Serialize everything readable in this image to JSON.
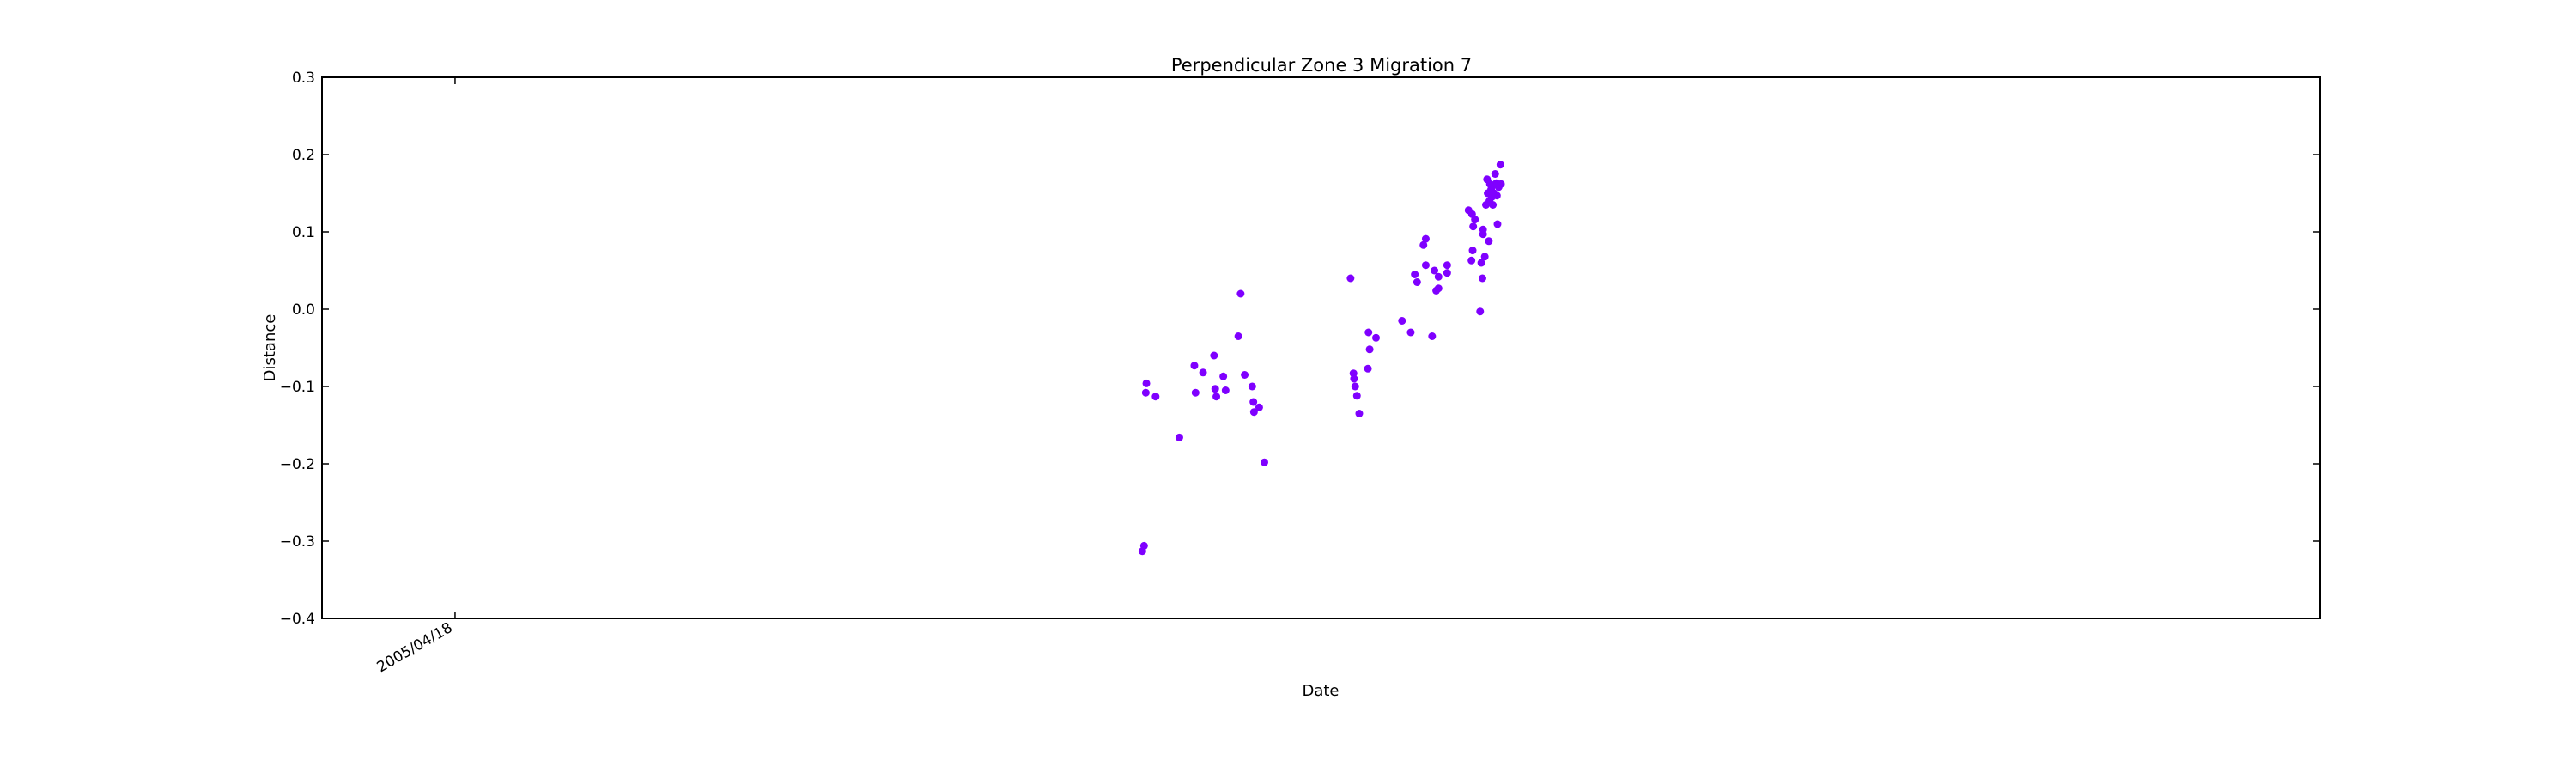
{
  "chart_data": {
    "type": "scatter",
    "title": "Perpendicular Zone 3 Migration 7",
    "xlabel": "Date",
    "ylabel": "Distance",
    "ylim": [
      -0.4,
      0.3
    ],
    "yticks": [
      -0.4,
      -0.3,
      -0.2,
      -0.1,
      0.0,
      0.1,
      0.2,
      0.3
    ],
    "ytick_labels": [
      "−0.4",
      "−0.3",
      "−0.2",
      "−0.1",
      "0.0",
      "0.1",
      "0.2",
      "0.3"
    ],
    "xlim": [
      "2004/08/31",
      "2014/02/14"
    ],
    "xticks": [
      {
        "x": "2005/04/18",
        "label": "2005/04/18"
      }
    ],
    "grid": false,
    "legend": "none",
    "marker_color": "#7f00ff",
    "series": [
      {
        "points": [
          {
            "x": "2008/07/19",
            "y": -0.313
          },
          {
            "x": "2008/07/22",
            "y": -0.306
          },
          {
            "x": "2008/07/26",
            "y": -0.096
          },
          {
            "x": "2008/07/25",
            "y": -0.108
          },
          {
            "x": "2008/08/11",
            "y": -0.113
          },
          {
            "x": "2008/09/21",
            "y": -0.166
          },
          {
            "x": "2008/10/17",
            "y": -0.073
          },
          {
            "x": "2008/10/19",
            "y": -0.108
          },
          {
            "x": "2008/11/01",
            "y": -0.082
          },
          {
            "x": "2008/11/20",
            "y": -0.06
          },
          {
            "x": "2008/11/22",
            "y": -0.103
          },
          {
            "x": "2008/11/24",
            "y": -0.113
          },
          {
            "x": "2008/12/06",
            "y": -0.087
          },
          {
            "x": "2008/12/10",
            "y": -0.105
          },
          {
            "x": "2009/01/01",
            "y": -0.035
          },
          {
            "x": "2009/01/05",
            "y": 0.02
          },
          {
            "x": "2009/01/12",
            "y": -0.085
          },
          {
            "x": "2009/01/25",
            "y": -0.1
          },
          {
            "x": "2009/01/27",
            "y": -0.12
          },
          {
            "x": "2009/01/28",
            "y": -0.133
          },
          {
            "x": "2009/02/06",
            "y": -0.127
          },
          {
            "x": "2009/02/15",
            "y": -0.198
          },
          {
            "x": "2009/07/14",
            "y": 0.04
          },
          {
            "x": "2009/07/19",
            "y": -0.083
          },
          {
            "x": "2009/07/20",
            "y": -0.09
          },
          {
            "x": "2009/07/22",
            "y": -0.1
          },
          {
            "x": "2009/07/25",
            "y": -0.112
          },
          {
            "x": "2009/07/29",
            "y": -0.135
          },
          {
            "x": "2009/08/13",
            "y": -0.077
          },
          {
            "x": "2009/08/14",
            "y": -0.03
          },
          {
            "x": "2009/08/16",
            "y": -0.052
          },
          {
            "x": "2009/08/27",
            "y": -0.037
          },
          {
            "x": "2009/10/11",
            "y": -0.015
          },
          {
            "x": "2009/10/26",
            "y": -0.03
          },
          {
            "x": "2009/11/02",
            "y": 0.045
          },
          {
            "x": "2009/11/06",
            "y": 0.035
          },
          {
            "x": "2009/11/17",
            "y": 0.083
          },
          {
            "x": "2009/11/21",
            "y": 0.091
          },
          {
            "x": "2009/11/21",
            "y": 0.057
          },
          {
            "x": "2009/12/02",
            "y": -0.035
          },
          {
            "x": "2009/12/06",
            "y": 0.05
          },
          {
            "x": "2009/12/09",
            "y": 0.024
          },
          {
            "x": "2009/12/13",
            "y": 0.042
          },
          {
            "x": "2009/12/13",
            "y": 0.027
          },
          {
            "x": "2009/12/28",
            "y": 0.047
          },
          {
            "x": "2009/12/28",
            "y": 0.057
          },
          {
            "x": "2010/02/03",
            "y": 0.128
          },
          {
            "x": "2010/02/09",
            "y": 0.123
          },
          {
            "x": "2010/02/10",
            "y": 0.076
          },
          {
            "x": "2010/02/08",
            "y": 0.063
          },
          {
            "x": "2010/02/11",
            "y": 0.107
          },
          {
            "x": "2010/02/14",
            "y": 0.116
          },
          {
            "x": "2010/02/23",
            "y": -0.003
          },
          {
            "x": "2010/02/25",
            "y": 0.06
          },
          {
            "x": "2010/02/27",
            "y": 0.04
          },
          {
            "x": "2010/02/28",
            "y": 0.103
          },
          {
            "x": "2010/02/28",
            "y": 0.097
          },
          {
            "x": "2010/03/03",
            "y": 0.068
          },
          {
            "x": "2010/03/05",
            "y": 0.135
          },
          {
            "x": "2010/03/07",
            "y": 0.168
          },
          {
            "x": "2010/03/08",
            "y": 0.15
          },
          {
            "x": "2010/03/10",
            "y": 0.088
          },
          {
            "x": "2010/03/11",
            "y": 0.14
          },
          {
            "x": "2010/03/12",
            "y": 0.162
          },
          {
            "x": "2010/03/14",
            "y": 0.155
          },
          {
            "x": "2010/03/15",
            "y": 0.145
          },
          {
            "x": "2010/03/16",
            "y": 0.16
          },
          {
            "x": "2010/03/17",
            "y": 0.135
          },
          {
            "x": "2010/03/19",
            "y": 0.15
          },
          {
            "x": "2010/03/21",
            "y": 0.175
          },
          {
            "x": "2010/03/23",
            "y": 0.163
          },
          {
            "x": "2010/03/24",
            "y": 0.147
          },
          {
            "x": "2010/03/25",
            "y": 0.11
          },
          {
            "x": "2010/03/27",
            "y": 0.158
          },
          {
            "x": "2010/03/30",
            "y": 0.187
          },
          {
            "x": "2010/03/31",
            "y": 0.162
          }
        ]
      }
    ]
  }
}
